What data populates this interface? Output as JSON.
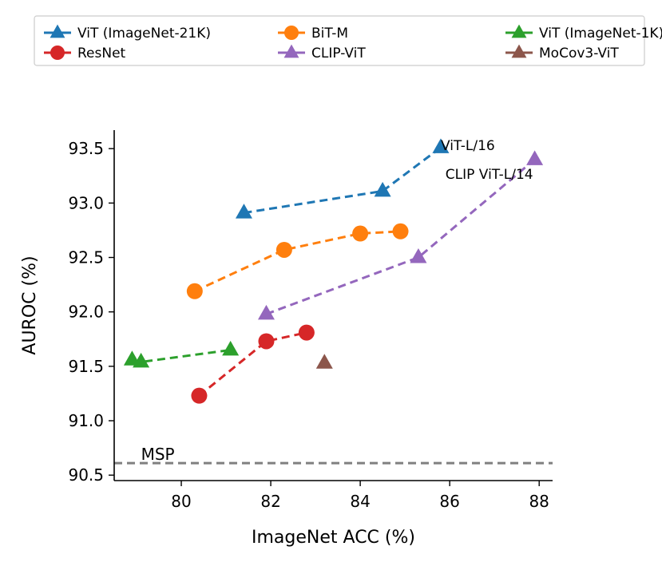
{
  "chart_data": {
    "type": "line",
    "title": "",
    "xlabel": "ImageNet ACC (%)",
    "ylabel": "AUROC (%)",
    "xlim": [
      78.5,
      88.3
    ],
    "ylim": [
      90.45,
      93.67
    ],
    "xticks": [
      80,
      82,
      84,
      86,
      88
    ],
    "yticks": [
      90.5,
      91.0,
      91.5,
      92.0,
      92.5,
      93.0,
      93.5
    ],
    "ytick_labels": [
      "90.5",
      "91.0",
      "91.5",
      "92.0",
      "92.5",
      "93.0",
      "93.5"
    ],
    "legend_position": "top",
    "series": [
      {
        "name": "ViT (ImageNet-21K)",
        "color": "#1f77b4",
        "marker": "triangle",
        "linestyle": "dashed",
        "x": [
          81.4,
          84.5,
          85.8
        ],
        "y": [
          92.91,
          93.11,
          93.51
        ]
      },
      {
        "name": "BiT-M",
        "color": "#ff7f0e",
        "marker": "circle",
        "linestyle": "dashed",
        "x": [
          80.3,
          82.3,
          84.0,
          84.9
        ],
        "y": [
          92.19,
          92.57,
          92.72,
          92.74
        ]
      },
      {
        "name": "ViT (ImageNet-1K)",
        "color": "#2ca02c",
        "marker": "triangle",
        "linestyle": "dashed",
        "x": [
          78.9,
          79.1,
          81.1
        ],
        "y": [
          91.56,
          91.54,
          91.65
        ]
      },
      {
        "name": "ResNet",
        "color": "#d62728",
        "marker": "circle",
        "linestyle": "dashed",
        "x": [
          80.4,
          81.9,
          82.8
        ],
        "y": [
          91.23,
          91.73,
          91.81
        ]
      },
      {
        "name": "CLIP-ViT",
        "color": "#9467bd",
        "marker": "triangle",
        "linestyle": "dashed",
        "x": [
          81.9,
          85.3,
          87.9
        ],
        "y": [
          91.98,
          92.5,
          93.4
        ]
      },
      {
        "name": "MoCov3-ViT",
        "color": "#8c564b",
        "marker": "triangle",
        "linestyle": "none",
        "x": [
          83.2
        ],
        "y": [
          91.53
        ]
      }
    ],
    "reference_line": {
      "label": "MSP",
      "y": 90.61,
      "color": "#808080",
      "linestyle": "dashed"
    },
    "annotations": [
      {
        "text": "ViT-L/16",
        "x": 85.8,
        "y": 93.51
      },
      {
        "text": "CLIP ViT-L/14",
        "x": 87.9,
        "y": 93.4
      }
    ]
  }
}
